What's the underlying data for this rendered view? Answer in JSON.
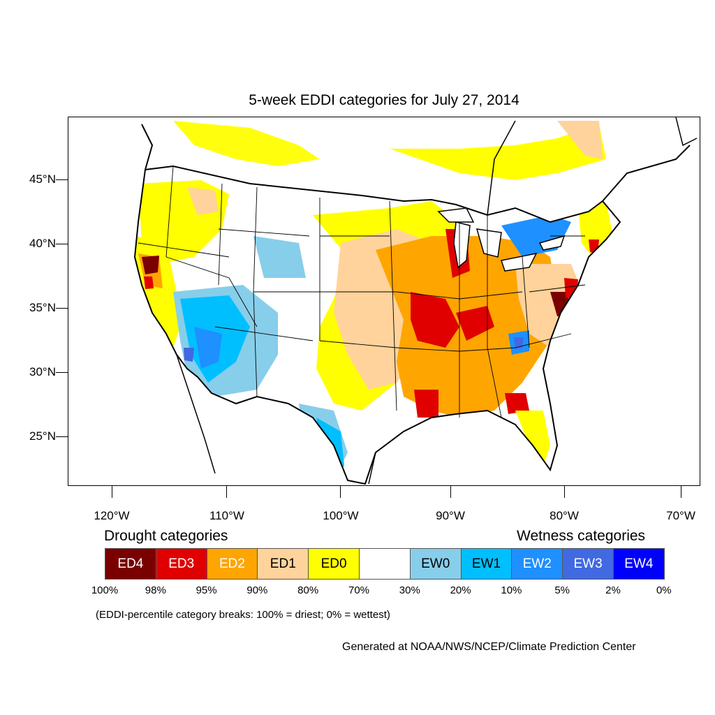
{
  "title": "5-week EDDI categories for July 27, 2014",
  "latitude_labels": [
    "45°N",
    "40°N",
    "35°N",
    "30°N",
    "25°N"
  ],
  "longitude_labels": [
    "120°W",
    "110°W",
    "100°W",
    "90°W",
    "80°W",
    "70°W"
  ],
  "legend": {
    "drought_heading": "Drought categories",
    "wetness_heading": "Wetness categories",
    "categories": [
      {
        "label": "ED4",
        "color": "#7a0000",
        "text_color": "#ffffff"
      },
      {
        "label": "ED3",
        "color": "#e00000",
        "text_color": "#ffffff"
      },
      {
        "label": "ED2",
        "color": "#ffa500",
        "text_color": "#ffffff"
      },
      {
        "label": "ED1",
        "color": "#ffd39b",
        "text_color": "#000000"
      },
      {
        "label": "ED0",
        "color": "#ffff00",
        "text_color": "#000000"
      },
      {
        "label": "",
        "color": "#ffffff",
        "text_color": "#000000"
      },
      {
        "label": "EW0",
        "color": "#87ceeb",
        "text_color": "#000000"
      },
      {
        "label": "EW1",
        "color": "#00bfff",
        "text_color": "#000000"
      },
      {
        "label": "EW2",
        "color": "#1e90ff",
        "text_color": "#ffffff"
      },
      {
        "label": "EW3",
        "color": "#4169e1",
        "text_color": "#ffffff"
      },
      {
        "label": "EW4",
        "color": "#0000ff",
        "text_color": "#ffffff"
      }
    ],
    "breaks": [
      "100%",
      "98%",
      "95%",
      "90%",
      "80%",
      "70%",
      "30%",
      "20%",
      "10%",
      "5%",
      "2%",
      "0%"
    ],
    "note": "(EDDI-percentile category breaks: 100% = driest; 0% = wettest)"
  },
  "credit": "Generated at NOAA/NWS/NCEP/Climate Prediction Center"
}
